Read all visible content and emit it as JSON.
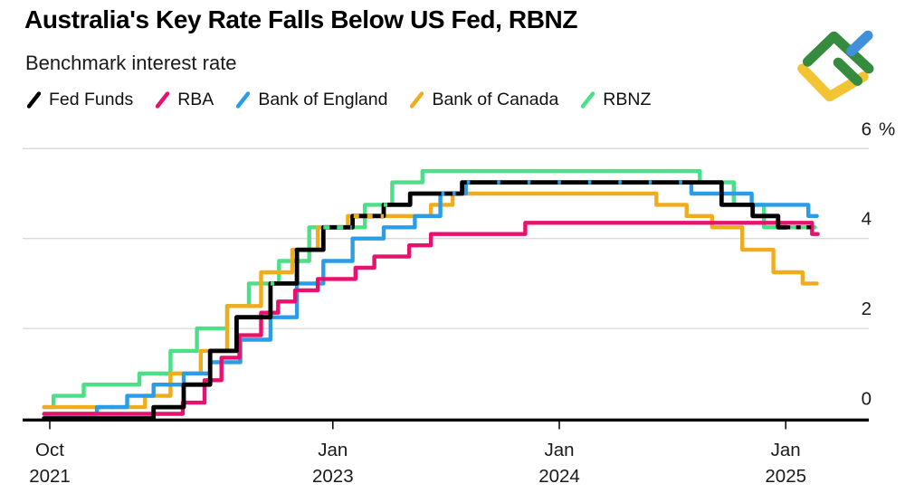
{
  "header": {
    "title": "Australia's Key Rate Falls Below US Fed, RBNZ",
    "subtitle": "Benchmark interest rate"
  },
  "legend": [
    {
      "label": "Fed Funds",
      "color": "#000000"
    },
    {
      "label": "RBA",
      "color": "#e8116d"
    },
    {
      "label": "Bank of England",
      "color": "#2b9ce8"
    },
    {
      "label": "Bank of Canada",
      "color": "#efad1d"
    },
    {
      "label": "RBNZ",
      "color": "#4be087"
    }
  ],
  "logo": {
    "name": "litefinance-logo",
    "colors": {
      "green": "#368c3e",
      "blue": "#4090da",
      "yellow": "#f2c332"
    }
  },
  "chart_data": {
    "type": "line",
    "subtype": "step",
    "title": "Australia's Key Rate Falls Below US Fed, RBNZ",
    "ylabel": "Benchmark interest rate (%)",
    "unit": "%",
    "x_unit": "months since Oct 2021",
    "xlim": [
      -0.3,
      40.7
    ],
    "ylim": [
      0,
      6
    ],
    "grid": true,
    "gridline_color": "#d9d9d9",
    "axis_color": "#000000",
    "label_color": "#1a1a1a",
    "x_ticks": [
      {
        "m": 0,
        "month": "Oct",
        "year": "2021"
      },
      {
        "m": 15,
        "month": "Jan",
        "year": "2023"
      },
      {
        "m": 27,
        "month": "Jan",
        "year": "2024"
      },
      {
        "m": 39,
        "month": "Jan",
        "year": "2025"
      }
    ],
    "y_ticks": [
      {
        "v": 6,
        "label": "6",
        "suffix": "%"
      },
      {
        "v": 4,
        "label": "4"
      },
      {
        "v": 2,
        "label": "2"
      },
      {
        "v": 0,
        "label": "0"
      }
    ],
    "series": [
      {
        "name": "RBNZ",
        "color": "#4be087",
        "width": 4.4,
        "steps": [
          [
            -0.3,
            0.25
          ],
          [
            0.2,
            0.5
          ],
          [
            1.8,
            0.75
          ],
          [
            4.75,
            1.0
          ],
          [
            6.4,
            1.5
          ],
          [
            7.8,
            2.0
          ],
          [
            9.4,
            2.5
          ],
          [
            10.55,
            3.0
          ],
          [
            12.15,
            3.5
          ],
          [
            13.75,
            4.25
          ],
          [
            16.7,
            4.75
          ],
          [
            18.15,
            5.25
          ],
          [
            19.75,
            5.5
          ],
          [
            34.45,
            5.25
          ],
          [
            36.25,
            4.75
          ],
          [
            37.85,
            4.25
          ],
          [
            40.55,
            4.25
          ]
        ]
      },
      {
        "name": "Bank of Canada",
        "color": "#efad1d",
        "width": 4.4,
        "steps": [
          [
            -0.3,
            0.25
          ],
          [
            5.05,
            0.5
          ],
          [
            6.4,
            1.0
          ],
          [
            8.0,
            1.5
          ],
          [
            9.4,
            2.5
          ],
          [
            11.2,
            3.25
          ],
          [
            12.85,
            3.75
          ],
          [
            14.2,
            4.25
          ],
          [
            15.8,
            4.5
          ],
          [
            20.2,
            4.75
          ],
          [
            21.35,
            5.0
          ],
          [
            32.15,
            4.75
          ],
          [
            33.75,
            4.5
          ],
          [
            35.1,
            4.25
          ],
          [
            36.7,
            3.75
          ],
          [
            38.35,
            3.25
          ],
          [
            39.9,
            3.0
          ],
          [
            40.65,
            3.0
          ]
        ]
      },
      {
        "name": "Bank of England",
        "color": "#2b9ce8",
        "width": 4.4,
        "steps": [
          [
            -0.3,
            0.1
          ],
          [
            2.5,
            0.25
          ],
          [
            4.1,
            0.5
          ],
          [
            5.5,
            0.75
          ],
          [
            7.1,
            1.0
          ],
          [
            8.5,
            1.25
          ],
          [
            10.1,
            1.75
          ],
          [
            11.7,
            2.25
          ],
          [
            13.1,
            3.0
          ],
          [
            14.5,
            3.5
          ],
          [
            16.05,
            4.0
          ],
          [
            17.7,
            4.25
          ],
          [
            19.35,
            4.5
          ],
          [
            20.7,
            5.0
          ],
          [
            22.05,
            5.25
          ],
          [
            34.0,
            5.0
          ],
          [
            37.2,
            4.75
          ],
          [
            40.2,
            4.5
          ],
          [
            40.65,
            4.5
          ]
        ]
      },
      {
        "name": "RBA",
        "color": "#e8116d",
        "width": 4.4,
        "steps": [
          [
            -0.3,
            0.1
          ],
          [
            7.05,
            0.35
          ],
          [
            8.2,
            0.85
          ],
          [
            9.1,
            1.35
          ],
          [
            10.05,
            1.85
          ],
          [
            11.2,
            2.35
          ],
          [
            12.1,
            2.6
          ],
          [
            13.0,
            2.85
          ],
          [
            14.2,
            3.1
          ],
          [
            16.2,
            3.35
          ],
          [
            17.2,
            3.6
          ],
          [
            19.05,
            3.85
          ],
          [
            20.2,
            4.1
          ],
          [
            25.2,
            4.35
          ],
          [
            40.4,
            4.1
          ],
          [
            40.7,
            4.1
          ]
        ]
      },
      {
        "name": "Fed Funds",
        "color": "#000000",
        "width": 4.8,
        "steps": [
          [
            -0.3,
            0.0
          ],
          [
            5.5,
            0.25
          ],
          [
            7.1,
            0.75
          ],
          [
            8.5,
            1.5
          ],
          [
            9.9,
            2.25
          ],
          [
            11.7,
            3.0
          ],
          [
            13.1,
            3.75
          ],
          [
            14.5,
            4.25
          ],
          [
            16.05,
            4.5
          ],
          [
            17.7,
            4.75
          ],
          [
            19.1,
            5.0
          ],
          [
            21.85,
            5.25
          ],
          [
            35.6,
            4.75
          ],
          [
            37.25,
            4.5
          ],
          [
            38.6,
            4.25
          ],
          [
            39.05,
            4.25
          ]
        ]
      }
    ],
    "overlaps": [
      {
        "v": 0.25,
        "m": [
          2.6,
          4.0
        ],
        "color": "#2b9ce8",
        "dash": "4 9"
      },
      {
        "v": 3.0,
        "m": [
          11.7,
          12.15
        ],
        "color": "#4be087",
        "dash": "4 6"
      },
      {
        "v": 4.25,
        "m": [
          14.5,
          16.0
        ],
        "color": "#4be087",
        "dash": "7 8"
      },
      {
        "v": 4.5,
        "m": [
          16.1,
          17.7
        ],
        "color": "#efad1d",
        "dash": "6 9"
      },
      {
        "v": 4.75,
        "m": [
          17.7,
          18.15
        ],
        "color": "#4be087",
        "dash": "4 7"
      },
      {
        "v": 5.0,
        "m": [
          20.75,
          21.85
        ],
        "color": "#2b9ce8",
        "dash": "3.5 9"
      },
      {
        "v": 5.25,
        "m": [
          22.1,
          33.9
        ],
        "color": "#2b9ce8",
        "dash": "3.5 30"
      },
      {
        "v": 4.25,
        "m": [
          39.0,
          40.55
        ],
        "color": "#000000",
        "dash": "5 6.5"
      }
    ]
  }
}
